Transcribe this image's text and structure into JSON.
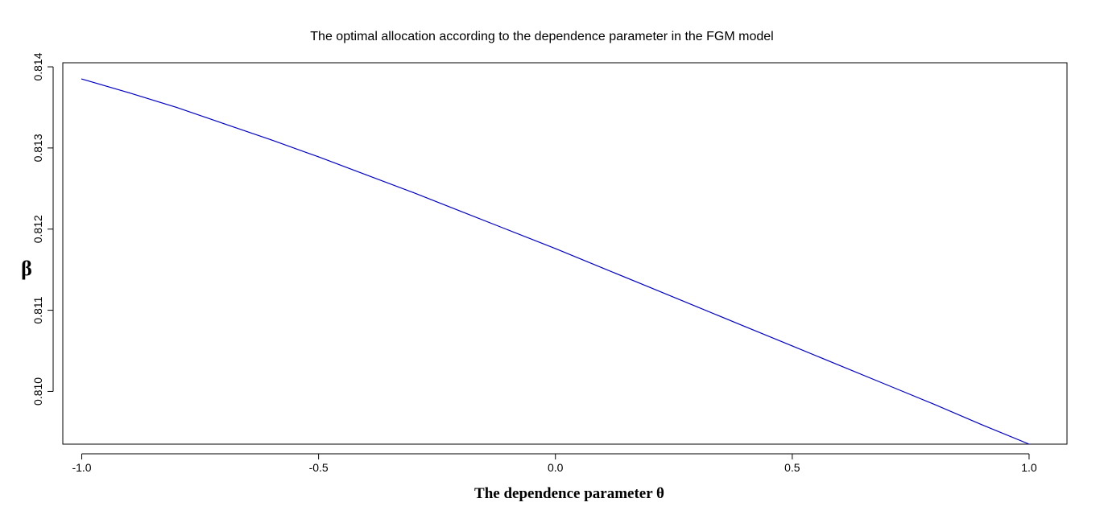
{
  "chart_data": {
    "type": "line",
    "title": "The optimal allocation according to the dependence parameter in the FGM model",
    "xlabel": "The dependence parameter θ",
    "ylabel": "β",
    "xlim": [
      -1.04,
      1.08
    ],
    "ylim": [
      0.80935,
      0.81405
    ],
    "x_ticks": [
      -1.0,
      -0.5,
      0.0,
      0.5,
      1.0
    ],
    "x_tick_labels": [
      "-1.0",
      "-0.5",
      "0.0",
      "0.5",
      "1.0"
    ],
    "y_ticks": [
      0.81,
      0.811,
      0.812,
      0.813,
      0.814
    ],
    "y_tick_labels": [
      "0.810",
      "0.811",
      "0.812",
      "0.813",
      "0.814"
    ],
    "grid": false,
    "series": [
      {
        "color": "#0000cc",
        "x": [
          -1.0,
          -0.9,
          -0.8,
          -0.7,
          -0.6,
          -0.5,
          -0.4,
          -0.3,
          -0.2,
          -0.1,
          0.0,
          0.1,
          0.2,
          0.3,
          0.4,
          0.5,
          0.6,
          0.7,
          0.8,
          0.9,
          1.0
        ],
        "y": [
          0.81385,
          0.81368,
          0.8135,
          0.8133,
          0.8131,
          0.81289,
          0.81267,
          0.81245,
          0.81222,
          0.81199,
          0.81176,
          0.81152,
          0.81128,
          0.81104,
          0.8108,
          0.81056,
          0.81032,
          0.81008,
          0.80984,
          0.80959,
          0.80935
        ]
      }
    ]
  }
}
